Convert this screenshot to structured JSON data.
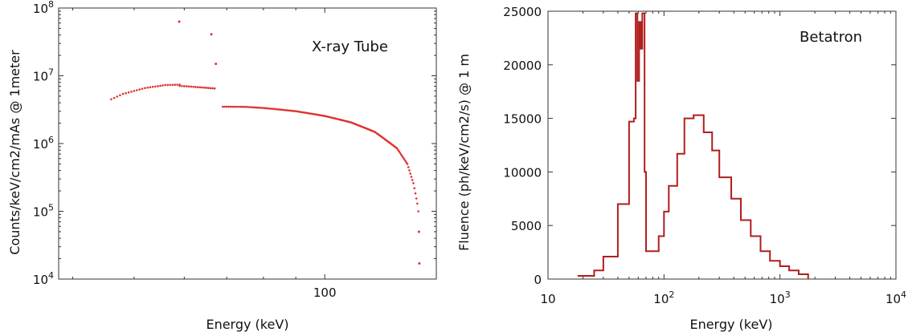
{
  "chart_data": [
    {
      "type": "scatter",
      "annotation": "X-ray Tube",
      "xlabel": "Energy  (keV)",
      "ylabel": "Counts/keV/cm2/mAs @ 1meter",
      "xscale": "log",
      "yscale": "log",
      "xlim": [
        38,
        150
      ],
      "ylim": [
        10000,
        100000000
      ],
      "xticks": [
        {
          "value": 100,
          "label": "100"
        }
      ],
      "yticks": [
        {
          "value": 10000,
          "base": "10",
          "exp": "4"
        },
        {
          "value": 100000,
          "base": "10",
          "exp": "5"
        },
        {
          "value": 1000000,
          "base": "10",
          "exp": "6"
        },
        {
          "value": 10000000,
          "base": "10",
          "exp": "7"
        },
        {
          "value": 100000000,
          "base": "10",
          "exp": "8"
        }
      ],
      "color": "#e03030",
      "segments": [
        {
          "from": 46,
          "to": 59,
          "step": 0.5,
          "points": [
            [
              46,
              4500000
            ],
            [
              48,
              5400000
            ],
            [
              52,
              6600000
            ],
            [
              56,
              7300000
            ],
            [
              59,
              7400000
            ]
          ]
        },
        {
          "from": 59,
          "to": 67,
          "step": 0.5,
          "points": [
            [
              59,
              7100000
            ],
            [
              63,
              6800000
            ],
            [
              67,
              6500000
            ]
          ]
        },
        {
          "from": 69,
          "to": 140.5,
          "step": 0.5,
          "points": [
            [
              69,
              3500000
            ],
            [
              75,
              3480000
            ],
            [
              80,
              3350000
            ],
            [
              90,
              3000000
            ],
            [
              100,
              2550000
            ],
            [
              110,
              2050000
            ],
            [
              120,
              1480000
            ],
            [
              130,
              850000
            ],
            [
              135,
              500000
            ],
            [
              138,
              260000
            ],
            [
              140,
              130000
            ],
            [
              140.5,
              100000
            ]
          ]
        }
      ],
      "peaks": [
        [
          58.9,
          63000000
        ],
        [
          66.2,
          41000000
        ],
        [
          67.3,
          15000000
        ],
        [
          140.8,
          50000
        ],
        [
          141,
          17000
        ]
      ]
    },
    {
      "type": "line",
      "annotation": "Betatron",
      "xlabel": "Energy   (keV)",
      "ylabel": "Fluence (ph/keV/cm2/s) @ 1 m",
      "xscale": "log",
      "xlim": [
        10,
        10000
      ],
      "ylim": [
        0,
        25000
      ],
      "color": "#b01e1e",
      "xticks": [
        {
          "value": 10,
          "base": "10",
          "exp": ""
        },
        {
          "value": 100,
          "base": "10",
          "exp": "2"
        },
        {
          "value": 1000,
          "base": "10",
          "exp": "3"
        },
        {
          "value": 10000,
          "base": "10",
          "exp": "4"
        }
      ],
      "yticks": [
        0,
        5000,
        10000,
        15000,
        20000,
        25000
      ],
      "steps": [
        [
          18,
          300
        ],
        [
          25,
          800
        ],
        [
          30,
          2100
        ],
        [
          40,
          7000
        ],
        [
          50,
          14700
        ],
        [
          55,
          15000
        ],
        [
          57,
          24800
        ],
        [
          59,
          18500
        ],
        [
          61,
          24000
        ],
        [
          63,
          21500
        ],
        [
          65,
          24800
        ],
        [
          68,
          10000
        ],
        [
          70,
          2600
        ],
        [
          80,
          2600
        ],
        [
          90,
          4000
        ],
        [
          100,
          6300
        ],
        [
          110,
          8700
        ],
        [
          130,
          11700
        ],
        [
          150,
          15000
        ],
        [
          180,
          15300
        ],
        [
          220,
          13700
        ],
        [
          260,
          12000
        ],
        [
          300,
          9500
        ],
        [
          380,
          7500
        ],
        [
          460,
          5500
        ],
        [
          560,
          4000
        ],
        [
          680,
          2600
        ],
        [
          820,
          1700
        ],
        [
          1000,
          1200
        ],
        [
          1200,
          800
        ],
        [
          1450,
          450
        ],
        [
          1750,
          0
        ]
      ]
    }
  ]
}
